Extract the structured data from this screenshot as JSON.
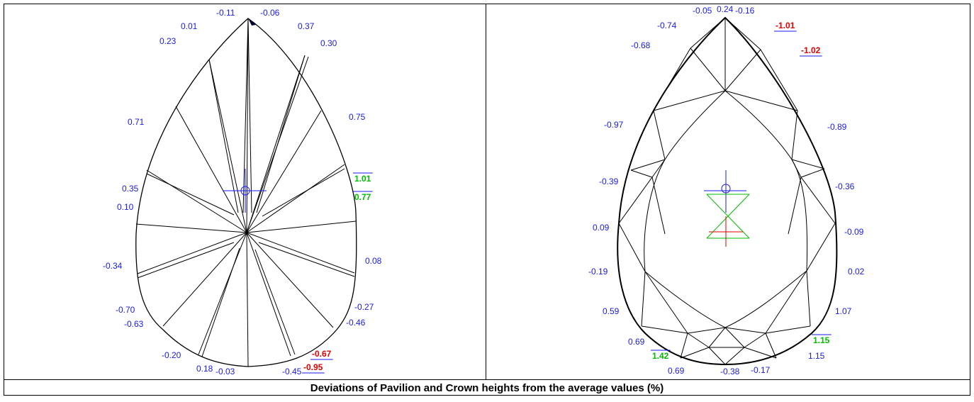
{
  "caption": "Deviations of Pavilion and Crown heights from the average values (%)",
  "colors": {
    "normal": "#1a1aee",
    "high": "#e00000",
    "low": "#00bb00",
    "outline": "#000000"
  },
  "pavilion": {
    "labels": [
      {
        "text": "-0.11",
        "style": "normal"
      },
      {
        "text": "-0.06",
        "style": "normal"
      },
      {
        "text": "0.01",
        "style": "normal"
      },
      {
        "text": "0.37",
        "style": "normal"
      },
      {
        "text": "0.23",
        "style": "normal"
      },
      {
        "text": "0.30",
        "style": "normal"
      },
      {
        "text": "0.71",
        "style": "normal"
      },
      {
        "text": "0.75",
        "style": "normal"
      },
      {
        "text": "1.01",
        "style": "low"
      },
      {
        "text": "0.35",
        "style": "normal"
      },
      {
        "text": "0.77",
        "style": "low"
      },
      {
        "text": "0.10",
        "style": "normal"
      },
      {
        "text": "0.08",
        "style": "normal"
      },
      {
        "text": "-0.34",
        "style": "normal"
      },
      {
        "text": "-0.27",
        "style": "normal"
      },
      {
        "text": "-0.70",
        "style": "normal"
      },
      {
        "text": "-0.46",
        "style": "normal"
      },
      {
        "text": "-0.63",
        "style": "normal"
      },
      {
        "text": "-0.67",
        "style": "high"
      },
      {
        "text": "-0.20",
        "style": "normal"
      },
      {
        "text": "0.18",
        "style": "normal"
      },
      {
        "text": "-0.03",
        "style": "normal"
      },
      {
        "text": "-0.45",
        "style": "normal"
      },
      {
        "text": "-0.95",
        "style": "high"
      }
    ]
  },
  "crown": {
    "labels": [
      {
        "text": "-0.05",
        "style": "normal"
      },
      {
        "text": "0.24",
        "style": "normal"
      },
      {
        "text": "-0.16",
        "style": "normal"
      },
      {
        "text": "-0.74",
        "style": "normal"
      },
      {
        "text": "-1.01",
        "style": "high"
      },
      {
        "text": "-0.68",
        "style": "normal"
      },
      {
        "text": "-1.02",
        "style": "high"
      },
      {
        "text": "-0.97",
        "style": "normal"
      },
      {
        "text": "-0.89",
        "style": "normal"
      },
      {
        "text": "-0.39",
        "style": "normal"
      },
      {
        "text": "-0.36",
        "style": "normal"
      },
      {
        "text": "0.09",
        "style": "normal"
      },
      {
        "text": "-0.09",
        "style": "normal"
      },
      {
        "text": "-0.19",
        "style": "normal"
      },
      {
        "text": "0.02",
        "style": "normal"
      },
      {
        "text": "0.59",
        "style": "normal"
      },
      {
        "text": "1.07",
        "style": "normal"
      },
      {
        "text": "0.69",
        "style": "normal"
      },
      {
        "text": "1.15",
        "style": "low"
      },
      {
        "text": "1.42",
        "style": "low"
      },
      {
        "text": "1.15",
        "style": "normal"
      },
      {
        "text": "0.69",
        "style": "normal"
      },
      {
        "text": "-0.38",
        "style": "normal"
      },
      {
        "text": "-0.17",
        "style": "normal"
      }
    ]
  }
}
